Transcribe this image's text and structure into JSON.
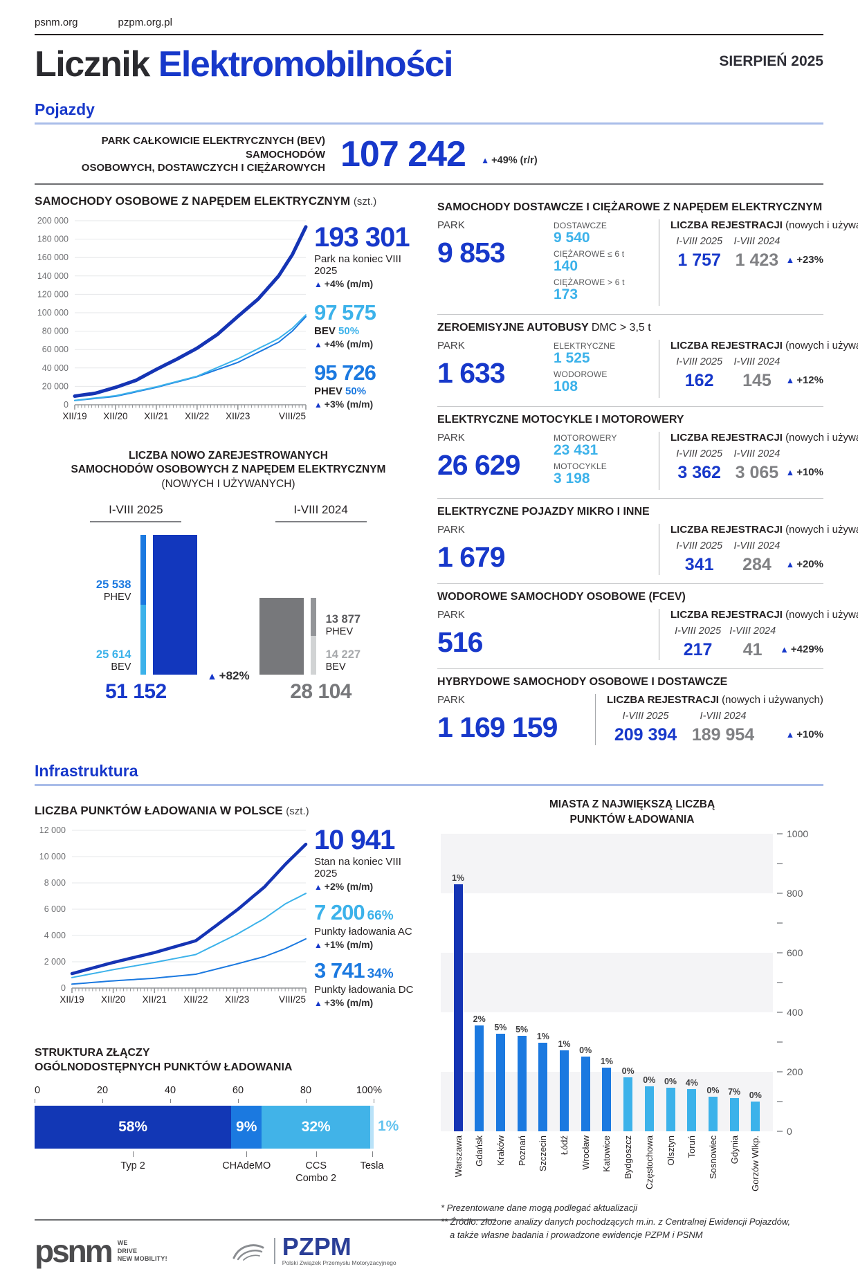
{
  "meta": {
    "link_psnm": "psnm.org",
    "link_pzpm": "pzpm.org.pl",
    "title_dark": "Licznik",
    "title_accent": "Elektromobilności",
    "issue": "SIERPIEŃ 2025"
  },
  "sections": {
    "vehicles": "Pojazdy",
    "infrastructure": "Infrastruktura"
  },
  "hero": {
    "label_line1": "PARK CAŁKOWICIE ELEKTRYCZNYCH (BEV) SAMOCHODÓW",
    "label_line2": "OSOBOWYCH, DOSTAWCZYCH I CIĘŻAROWYCH",
    "value": "107 242",
    "delta": "+49% (r/r)"
  },
  "labels": {
    "park": "PARK",
    "rej_title": "LICZBA REJESTRACJI",
    "rej_sub": "(nowych i używanych)",
    "period_2025": "I-VIII 2025",
    "period_2024": "I-VIII 2024"
  },
  "ev_section": {
    "title": "SAMOCHODY OSOBOWE Z NAPĘDEM ELEKTRYCZNYM",
    "unit": "(szt.)",
    "stat_total": {
      "value": "193 301",
      "sub": "Park na koniec VIII 2025",
      "delta": "+4% (m/m)"
    },
    "stat_bev": {
      "value": "97 575",
      "name": "BEV",
      "share": "50%",
      "delta": "+4% (m/m)"
    },
    "stat_phev": {
      "value": "95 726",
      "name": "PHEV",
      "share": "50%",
      "delta": "+3% (m/m)"
    }
  },
  "new_reg": {
    "title_l1": "LICZBA NOWO ZAREJESTROWANYCH",
    "title_l2": "SAMOCHODÓW OSOBOWYCH Z NAPĘDEM ELEKTRYCZNYM",
    "title_l3": "(NOWYCH I UŻYWANYCH)",
    "delta": "+82%",
    "g2025": {
      "period": "I-VIII 2025",
      "total": "51 152",
      "phev": "25 538",
      "bev": "25 614"
    },
    "g2024": {
      "period": "I-VIII 2024",
      "total": "28 104",
      "phev": "13 877",
      "bev": "14 227"
    },
    "seg_phev": "PHEV",
    "seg_bev": "BEV"
  },
  "blocks": [
    {
      "title": "SAMOCHODY DOSTAWCZE I CIĘŻAROWE Z NAPĘDEM ELEKTRYCZNYM",
      "park": "9 853",
      "substats": [
        {
          "label": "DOSTAWCZE",
          "value": "9 540"
        },
        {
          "label": "CIĘŻAROWE ≤ 6 t",
          "value": "140"
        },
        {
          "label": "CIĘŻAROWE > 6 t",
          "value": "173"
        }
      ],
      "reg_2025": "1 757",
      "reg_2024": "1 423",
      "delta": "+23%"
    },
    {
      "title": "ZEROEMISYJNE AUTOBUSY",
      "title_suffix": "DMC > 3,5 t",
      "park": "1 633",
      "substats": [
        {
          "label": "ELEKTRYCZNE",
          "value": "1 525"
        },
        {
          "label": "WODOROWE",
          "value": "108"
        }
      ],
      "reg_2025": "162",
      "reg_2024": "145",
      "delta": "+12%"
    },
    {
      "title": "ELEKTRYCZNE MOTOCYKLE I MOTOROWERY",
      "park": "26 629",
      "substats": [
        {
          "label": "MOTOROWERY",
          "value": "23 431"
        },
        {
          "label": "MOTOCYKLE",
          "value": "3 198"
        }
      ],
      "reg_2025": "3 362",
      "reg_2024": "3 065",
      "delta": "+10%"
    },
    {
      "title": "ELEKTRYCZNE POJAZDY MIKRO I INNE",
      "park": "1 679",
      "reg_2025": "341",
      "reg_2024": "284",
      "delta": "+20%"
    },
    {
      "title": "WODOROWE SAMOCHODY OSOBOWE (FCEV)",
      "park": "516",
      "reg_2025": "217",
      "reg_2024": "41",
      "delta": "+429%"
    },
    {
      "title": "HYBRYDOWE SAMOCHODY OSOBOWE I DOSTAWCZE",
      "park": "1 169 159",
      "reg_2025": "209 394",
      "reg_2024": "189 954",
      "delta": "+10%"
    }
  ],
  "infra_section": {
    "title": "LICZBA PUNKTÓW ŁADOWANIA W POLSCE",
    "unit": "(szt.)",
    "stat_total": {
      "value": "10 941",
      "sub": "Stan na koniec VIII 2025",
      "delta": "+2% (m/m)"
    },
    "stat_ac": {
      "value": "7 200",
      "share": "66%",
      "sub": "Punkty ładowania AC",
      "delta": "+1% (m/m)"
    },
    "stat_dc": {
      "value": "3 741",
      "share": "34%",
      "sub": "Punkty ładowania DC",
      "delta": "+3% (m/m)"
    }
  },
  "connectors_section": {
    "title_l1": "STRUKTURA ZŁĄCZY",
    "title_l2": "OGÓLNODOSTĘPNYCH PUNKTÓW ŁADOWANIA"
  },
  "cities_section": {
    "title_l1": "MIASTA Z NAJWIĘKSZĄ LICZBĄ",
    "title_l2": "PUNKTÓW ŁADOWANIA"
  },
  "footnotes": {
    "line1": "* Prezentowane dane mogą podlegać aktualizacji",
    "line2": "** Źródło: złożone analizy danych pochodzących m.in. z Centralnej Ewidencji Pojazdów,",
    "line3": "a także własne badania i prowadzone ewidencje PZPM i PSNM"
  },
  "footer": {
    "psnm": "psnm",
    "psnm_tag1": "WE",
    "psnm_tag2": "DRIVE",
    "psnm_tag3": "NEW MOBILITY!",
    "pzpm": "PZPM",
    "pzpm_caption": "Polski Związek Przemysłu Motoryzacyjnego"
  },
  "colors": {
    "brand_blue": "#1738ca",
    "navy": "#1534b4",
    "medium_blue": "#1b79e0",
    "cyan": "#3cb2ea",
    "bar_2025": "#1237bd",
    "bar_2024": "#77787b",
    "gray_phev": "#939598",
    "gray_bev": "#d1d3d4",
    "tesla_light": "#b9e2f8"
  },
  "chart_data": [
    {
      "id": "ev_park",
      "type": "line",
      "title": "SAMOCHODY OSOBOWE Z NAPĘDEM ELEKTRYCZNYM (szt.)",
      "ylabel": "szt.",
      "ylim": [
        0,
        200000
      ],
      "ytick": 20000,
      "grid": true,
      "months": 68,
      "x_tick_months": [
        0,
        12,
        24,
        36,
        48,
        68
      ],
      "x_tick_labels": [
        "XII/19",
        "XII/20",
        "XII/21",
        "XII/22",
        "XII/23",
        "VIII/25"
      ],
      "series": [
        {
          "name": "Park EV razem (BEV+PHEV)",
          "color": "#1534b4",
          "width": 5,
          "anchors": [
            [
              0,
              9400
            ],
            [
              6,
              12500
            ],
            [
              12,
              18900
            ],
            [
              18,
              26500
            ],
            [
              24,
              38400
            ],
            [
              30,
              49500
            ],
            [
              36,
              61500
            ],
            [
              42,
              76500
            ],
            [
              48,
              96000
            ],
            [
              54,
              115000
            ],
            [
              60,
              140000
            ],
            [
              64,
              163000
            ],
            [
              68,
              193301
            ]
          ]
        },
        {
          "name": "PHEV",
          "color": "#1b79e0",
          "width": 2,
          "anchors": [
            [
              0,
              4600
            ],
            [
              12,
              9100
            ],
            [
              24,
              18900
            ],
            [
              36,
              30500
            ],
            [
              48,
              46000
            ],
            [
              60,
              68000
            ],
            [
              64,
              80000
            ],
            [
              68,
              95726
            ]
          ]
        },
        {
          "name": "BEV",
          "color": "#3cb2ea",
          "width": 2,
          "anchors": [
            [
              0,
              4800
            ],
            [
              12,
              9800
            ],
            [
              24,
              19500
            ],
            [
              36,
              31000
            ],
            [
              48,
              50000
            ],
            [
              60,
              72000
            ],
            [
              64,
              83000
            ],
            [
              68,
              97575
            ]
          ]
        }
      ]
    },
    {
      "id": "new_registrations",
      "type": "bar",
      "title": "LICZBA NOWO ZAREJESTROWANYCH SAMOCHODÓW OSOBOWYCH Z NAPĘDEM ELEKTRYCZNYM (NOWYCH I UŻYWANYCH)",
      "categories": [
        "I-VIII 2025",
        "I-VIII 2024"
      ],
      "series": [
        {
          "name": "RAZEM",
          "values": [
            51152,
            28104
          ]
        },
        {
          "name": "PHEV",
          "values": [
            25538,
            13877
          ]
        },
        {
          "name": "BEV",
          "values": [
            25614,
            14227
          ]
        }
      ],
      "delta": "+82%"
    },
    {
      "id": "charging_points",
      "type": "line",
      "title": "LICZBA PUNKTÓW ŁADOWANIA W POLSCE (szt.)",
      "ylabel": "szt.",
      "ylim": [
        0,
        12000
      ],
      "ytick": 2000,
      "grid": true,
      "months": 68,
      "x_tick_months": [
        0,
        12,
        24,
        36,
        48,
        68
      ],
      "x_tick_labels": [
        "XII/19",
        "XII/20",
        "XII/21",
        "XII/22",
        "XII/23",
        "VIII/25"
      ],
      "series": [
        {
          "name": "Punkty ładowania razem",
          "color": "#1534b4",
          "width": 4.5,
          "anchors": [
            [
              0,
              1100
            ],
            [
              12,
              1950
            ],
            [
              24,
              2700
            ],
            [
              36,
              3600
            ],
            [
              48,
              5940
            ],
            [
              56,
              7700
            ],
            [
              62,
              9400
            ],
            [
              68,
              10941
            ]
          ]
        },
        {
          "name": "AC",
          "color": "#3cb2ea",
          "width": 2,
          "anchors": [
            [
              0,
              800
            ],
            [
              12,
              1400
            ],
            [
              24,
              1950
            ],
            [
              36,
              2550
            ],
            [
              48,
              4100
            ],
            [
              56,
              5300
            ],
            [
              62,
              6400
            ],
            [
              68,
              7200
            ]
          ]
        },
        {
          "name": "DC",
          "color": "#1b79e0",
          "width": 2,
          "anchors": [
            [
              0,
              300
            ],
            [
              12,
              550
            ],
            [
              24,
              750
            ],
            [
              36,
              1050
            ],
            [
              48,
              1840
            ],
            [
              56,
              2400
            ],
            [
              62,
              3000
            ],
            [
              68,
              3741
            ]
          ]
        }
      ]
    },
    {
      "id": "connector_structure",
      "type": "stacked-bar",
      "title": "STRUKTURA ZŁĄCZY OGÓLNODOSTĘPNYCH PUNKTÓW ŁADOWANIA",
      "axis_ticks": [
        0,
        20,
        40,
        60,
        80,
        100
      ],
      "segments": [
        {
          "label": "Typ 2",
          "value": 58,
          "color": "#1237b5",
          "text_inside": true
        },
        {
          "label": "CHAdeMO",
          "value": 9,
          "color": "#1b79e0",
          "text_inside": true
        },
        {
          "label": "CCS\nCombo 2",
          "value": 32,
          "color": "#41b3e8",
          "text_inside": true
        },
        {
          "label": "Tesla",
          "value": 1,
          "color": "#b9e2f8",
          "text_inside": false
        }
      ]
    },
    {
      "id": "cities",
      "type": "bar",
      "title": "MIASTA Z NAJWIĘKSZĄ LICZBĄ PUNKTÓW ŁADOWANIA",
      "ylim": [
        0,
        1000
      ],
      "ytick_major": 200,
      "ytick_minor": 100,
      "legend_position": "none",
      "categories": [
        "Warszawa",
        "Gdańsk",
        "Kraków",
        "Poznań",
        "Szczecin",
        "Łódź",
        "Wrocław",
        "Katowice",
        "Bydgoszcz",
        "Częstochowa",
        "Olsztyn",
        "Toruń",
        "Sosnowiec",
        "Gdynia",
        "Gorzów Wlkp."
      ],
      "values": [
        830,
        355,
        327,
        320,
        297,
        271,
        250,
        214,
        181,
        152,
        146,
        141,
        117,
        112,
        100
      ],
      "growth_labels": [
        "1%",
        "2%",
        "5%",
        "5%",
        "1%",
        "1%",
        "0%",
        "1%",
        "0%",
        "0%",
        "0%",
        "4%",
        "0%",
        "7%",
        "0%"
      ],
      "bar_colors": [
        "#1534b4",
        "#1b79e0",
        "#1b79e0",
        "#1b79e0",
        "#1b79e0",
        "#1b79e0",
        "#1b79e0",
        "#1b79e0",
        "#3cb2ea",
        "#3cb2ea",
        "#3cb2ea",
        "#3cb2ea",
        "#3cb2ea",
        "#3cb2ea",
        "#3cb2ea"
      ]
    }
  ]
}
